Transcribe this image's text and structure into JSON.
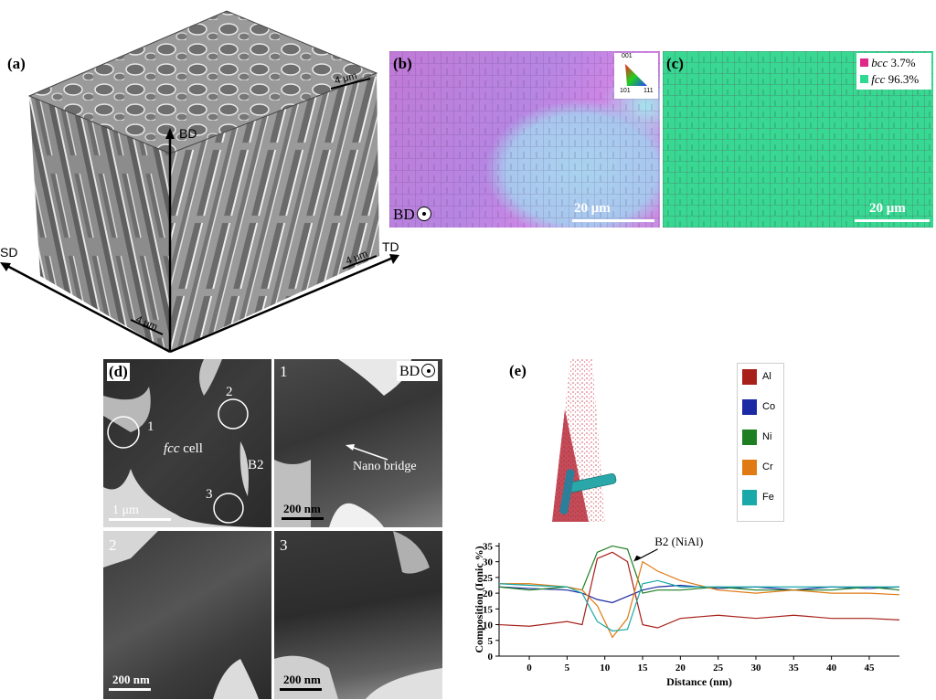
{
  "panel_a": {
    "label": "(a)",
    "axes": {
      "bd": "BD",
      "sd": "SD",
      "td": "TD"
    },
    "scale_bars": [
      "4 μm",
      "4 μm",
      "4 μm"
    ]
  },
  "panel_b": {
    "label": "(b)",
    "bd_text": "BD",
    "scale": "20 μm",
    "ipf_labels": [
      "001",
      "101",
      "111"
    ]
  },
  "panel_c": {
    "label": "(c)",
    "scale": "20 μm",
    "legend": [
      {
        "phase": "bcc",
        "value": "3.7%",
        "color": "#e0278a"
      },
      {
        "phase": "fcc",
        "value": "96.3%",
        "color": "#2fd994"
      }
    ]
  },
  "panel_d": {
    "label": "(d)",
    "fcc_text": "fcc",
    "cell_text": "cell",
    "b2_text": "B2",
    "markers": [
      "1",
      "2",
      "3"
    ],
    "scale": "1 μm",
    "sub1": {
      "label": "1",
      "bd_text": "BD",
      "annotation": "Nano bridge",
      "scale": "200 nm"
    },
    "sub2": {
      "label": "2",
      "scale": "200 nm"
    },
    "sub3": {
      "label": "3",
      "scale": "200 nm"
    }
  },
  "panel_e": {
    "label": "(e)",
    "legend": [
      {
        "name": "Al",
        "color": "#a8201a"
      },
      {
        "name": "Co",
        "color": "#1c2aa3"
      },
      {
        "name": "Ni",
        "color": "#1e7f22"
      },
      {
        "name": "Cr",
        "color": "#e07a12"
      },
      {
        "name": "Fe",
        "color": "#1aa8a8"
      }
    ]
  },
  "chart_data": {
    "type": "line",
    "annotation": "B2 (NiAl)",
    "xlabel": "Distance (nm)",
    "ylabel": "Composition (Ionic %)",
    "xlim": [
      -4,
      49
    ],
    "ylim": [
      0,
      36
    ],
    "xticks": [
      0,
      5,
      10,
      15,
      20,
      25,
      30,
      35,
      40,
      45
    ],
    "yticks": [
      0,
      5,
      10,
      15,
      20,
      25,
      30,
      35
    ],
    "grid": false,
    "legend_position": "above-right",
    "x": [
      -4,
      0,
      5,
      7,
      9,
      11,
      13,
      15,
      17,
      20,
      25,
      30,
      35,
      40,
      45,
      49
    ],
    "series": [
      {
        "name": "Al",
        "color": "#a8201a",
        "values": [
          10,
          9.5,
          11,
          10,
          31,
          33,
          30,
          10,
          9,
          12,
          13,
          12,
          13,
          12,
          12,
          11.5
        ]
      },
      {
        "name": "Co",
        "color": "#1c2aa3",
        "values": [
          22,
          21.5,
          21,
          20,
          18,
          17,
          19,
          21,
          22,
          22.5,
          21.5,
          22,
          21,
          22,
          21.5,
          22
        ]
      },
      {
        "name": "Ni",
        "color": "#1e7f22",
        "values": [
          22,
          21,
          22,
          21,
          33,
          35,
          34,
          20,
          21,
          21,
          22,
          21,
          21,
          21,
          22,
          21
        ]
      },
      {
        "name": "Cr",
        "color": "#e07a12",
        "values": [
          23,
          23,
          22,
          21,
          16,
          6,
          12,
          30,
          27,
          24,
          21,
          20,
          21,
          20,
          20,
          19.5
        ]
      },
      {
        "name": "Fe",
        "color": "#1aa8a8",
        "values": [
          23,
          22.5,
          22,
          20,
          11,
          8,
          8.5,
          23,
          24,
          22,
          22,
          22,
          22,
          22,
          22,
          22
        ]
      }
    ]
  }
}
